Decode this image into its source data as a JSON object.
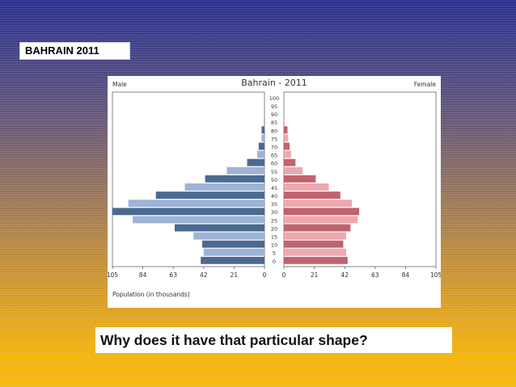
{
  "slide": {
    "heading": "BAHRAIN 2011",
    "question": "Why does it have that particular shape?"
  },
  "chart_data": {
    "type": "bar",
    "orientation": "horizontal-population-pyramid",
    "title": "Bahrain - 2011",
    "left_label": "Male",
    "right_label": "Female",
    "xlabel": "Population (in thousands)",
    "x_ticks_left": [
      "105",
      "84",
      "63",
      "42",
      "21",
      "0"
    ],
    "x_ticks_right": [
      "0",
      "21",
      "42",
      "63",
      "84",
      "105"
    ],
    "xlim": [
      0,
      105
    ],
    "age_labels": [
      "100",
      "95",
      "90",
      "85",
      "80",
      "75",
      "70",
      "65",
      "60",
      "55",
      "50",
      "45",
      "40",
      "35",
      "30",
      "25",
      "20",
      "15",
      "10",
      "5",
      "0"
    ],
    "series": [
      {
        "side": "left",
        "values": [
          0,
          0,
          0,
          0.5,
          2,
          2,
          4,
          5,
          12,
          26,
          41,
          55,
          75,
          94,
          106,
          91,
          62,
          49,
          43,
          42,
          44
        ]
      },
      {
        "side": "right",
        "values": [
          0,
          0,
          0,
          0.5,
          2.5,
          3,
          4,
          5,
          8,
          13,
          22,
          31,
          39,
          47,
          52,
          51,
          46,
          43,
          41,
          43,
          44
        ]
      }
    ],
    "colors": {
      "male_dark": "#4b6a92",
      "male_light": "#9db4d6",
      "female_dark": "#c1636e",
      "female_light": "#eea8b0"
    },
    "grid": false
  }
}
